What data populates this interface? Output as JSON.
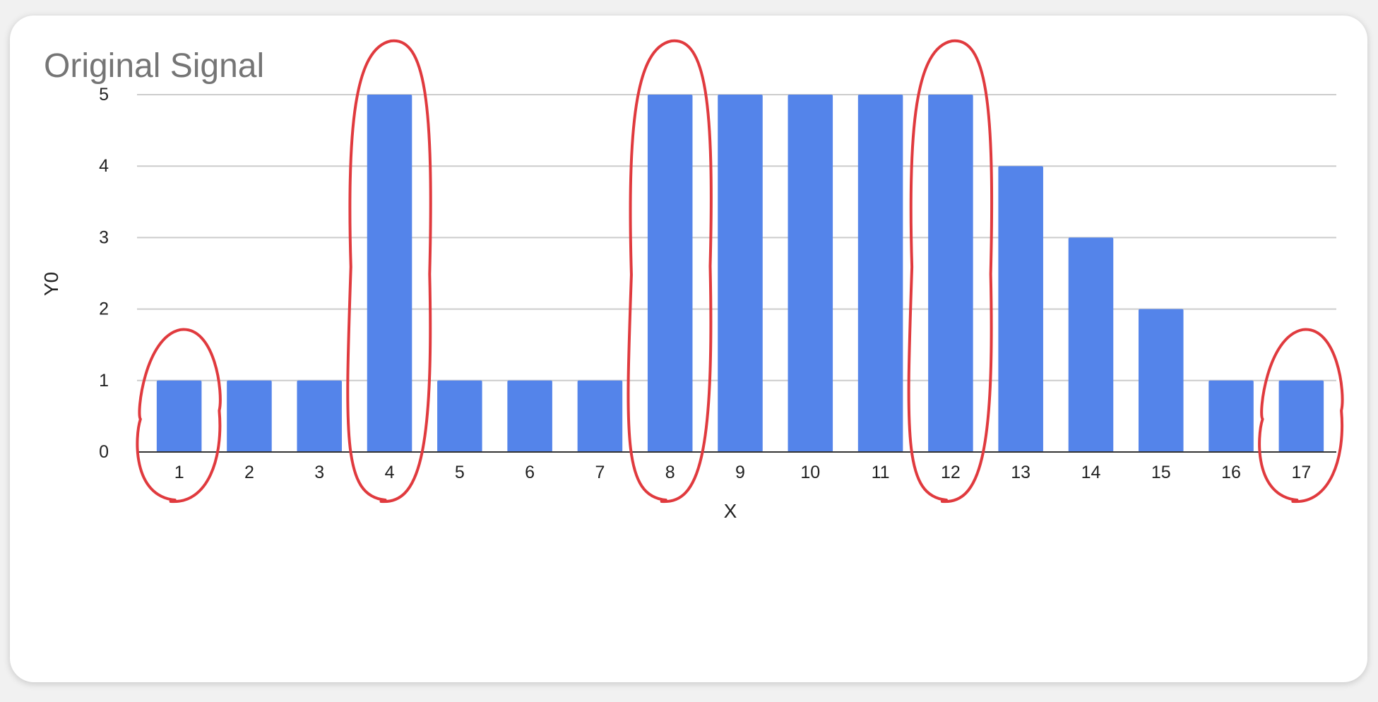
{
  "chart_data": {
    "type": "bar",
    "title": "Original Signal",
    "xlabel": "X",
    "ylabel": "Y0",
    "categories": [
      "1",
      "2",
      "3",
      "4",
      "5",
      "6",
      "7",
      "8",
      "9",
      "10",
      "11",
      "12",
      "13",
      "14",
      "15",
      "16",
      "17"
    ],
    "values": [
      1,
      1,
      1,
      5,
      1,
      1,
      1,
      5,
      5,
      5,
      5,
      5,
      4,
      3,
      2,
      1,
      1
    ],
    "ylim": [
      0,
      5
    ],
    "yticks": [
      0,
      1,
      2,
      3,
      4,
      5
    ],
    "grid": true,
    "legend": "none",
    "bar_color": "#5484ea",
    "gridline_color": "#cccccc",
    "axis_color": "#333333",
    "annotations": {
      "type": "hand-drawn red circles",
      "color": "#e03a3e",
      "circled_categories": [
        "1",
        "4",
        "8",
        "12",
        "17"
      ]
    }
  }
}
